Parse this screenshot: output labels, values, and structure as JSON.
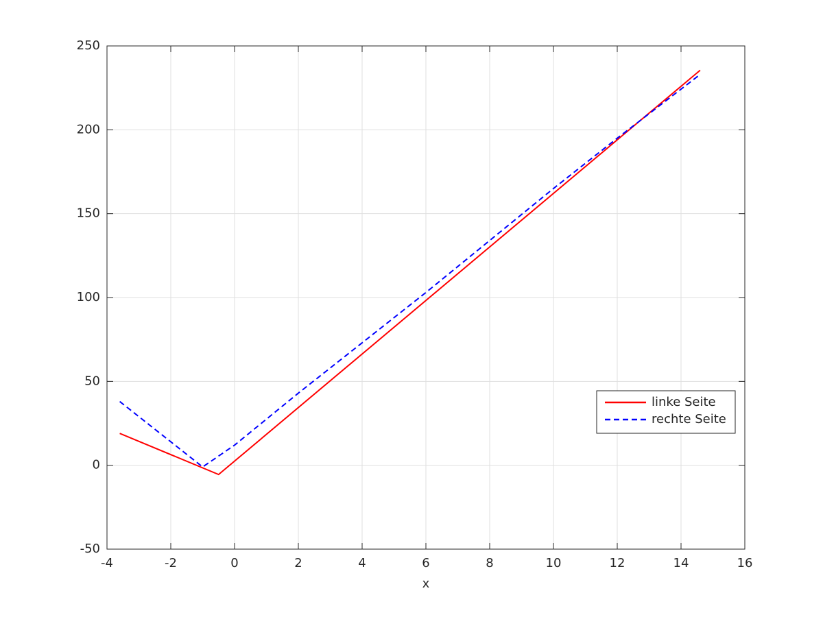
{
  "chart_data": {
    "type": "line",
    "x_label": "x",
    "series": [
      {
        "name": "linke Seite",
        "color": "#ff0000",
        "dash": "solid",
        "x": [
          -3.6,
          -0.5,
          14.6
        ],
        "values": [
          19,
          -5.5,
          235.5
        ]
      },
      {
        "name": "rechte Seite",
        "color": "#0000ff",
        "dash": "dashed",
        "x": [
          -3.6,
          -1,
          0,
          2,
          4,
          6,
          8,
          10,
          12,
          14.6
        ],
        "values": [
          38,
          -1,
          12,
          43,
          73,
          103,
          134,
          165,
          195,
          233
        ]
      }
    ],
    "xlim": [
      -4,
      16
    ],
    "xticks": [
      -4,
      -2,
      0,
      2,
      4,
      6,
      8,
      10,
      12,
      14,
      16
    ],
    "ylim": [
      -50,
      250
    ],
    "yticks": [
      -50,
      0,
      50,
      100,
      150,
      200,
      250
    ],
    "grid": true,
    "legend_position": "right"
  }
}
